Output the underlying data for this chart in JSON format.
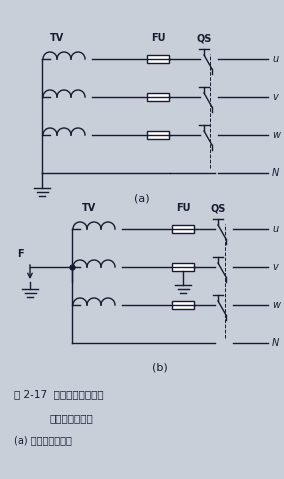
{
  "bg_color": "#c8cfd8",
  "line_color": "#1a1a2e",
  "fig_width": 2.84,
  "fig_height": 4.79,
  "title_text": "图 2-17  电压互感器二次侧",
  "subtitle_text": "的接线方式图解",
  "caption_text": "(a) 中性点接线方式",
  "label_a": "(a)",
  "label_b": "(b)",
  "label_TV": "TV",
  "label_FU": "FU",
  "label_QS": "QS",
  "label_F": "F",
  "output_labels": [
    "u",
    "v",
    "w",
    "N"
  ]
}
